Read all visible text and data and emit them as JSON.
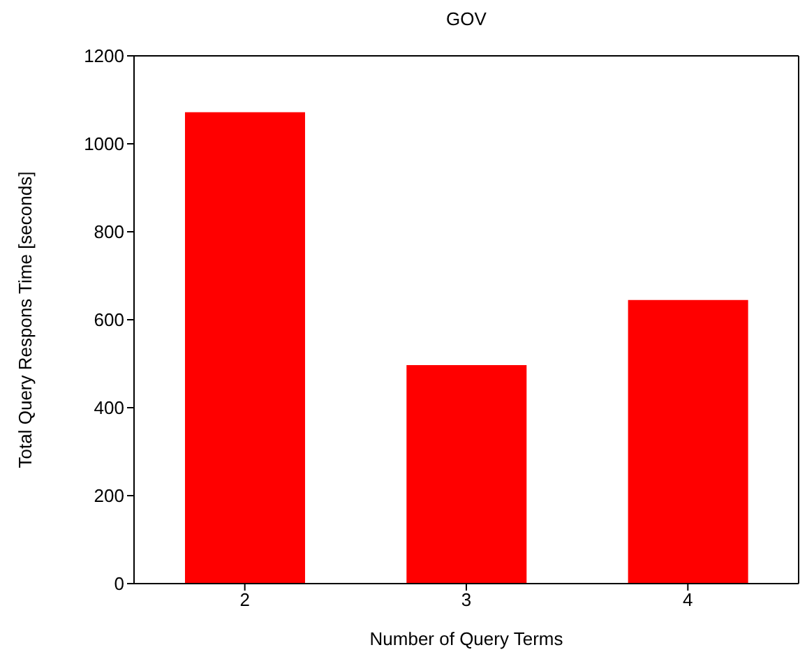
{
  "chart_data": {
    "type": "bar",
    "title": "GOV",
    "xlabel": "Number of Query Terms",
    "ylabel": "Total Query Respons Time [seconds]",
    "categories": [
      "2",
      "3",
      "4"
    ],
    "values": [
      1072,
      497,
      645
    ],
    "color": "#ff0000",
    "ylim": [
      0,
      1200
    ],
    "yticks": [
      0,
      200,
      400,
      600,
      800,
      1000,
      1200
    ]
  }
}
